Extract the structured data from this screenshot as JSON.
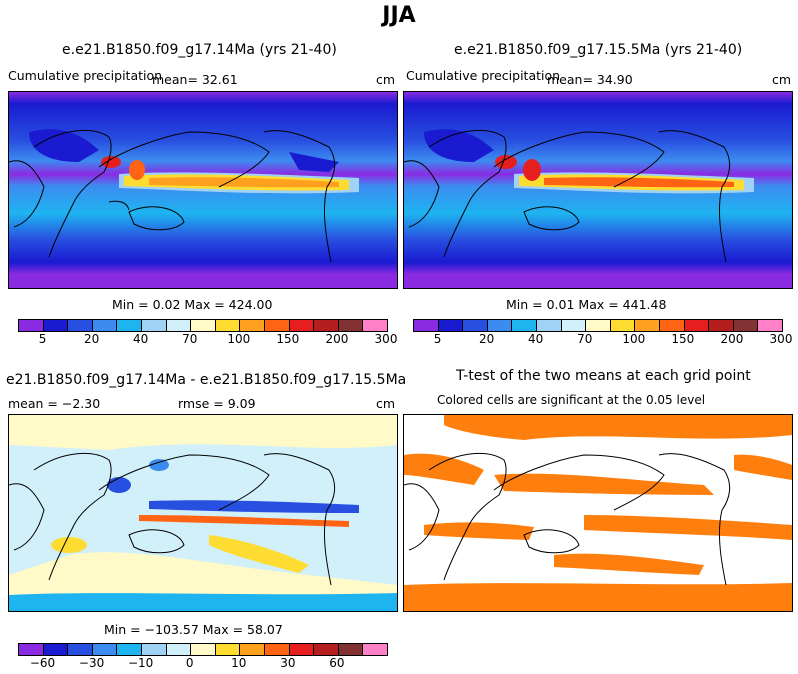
{
  "page": {
    "title": "JJA"
  },
  "panels": {
    "p1": {
      "title": "e.e21.B1850.f09_g17.14Ma (yrs 21-40)",
      "field": "Cumulative precipitation",
      "mean": "mean=  32.61",
      "units": "cm",
      "minmax": "Min =   0.02  Max = 424.00"
    },
    "p2": {
      "title": "e.e21.B1850.f09_g17.15.5Ma (yrs 21-40)",
      "field": "Cumulative precipitation",
      "mean": "mean=  34.90",
      "units": "cm",
      "minmax": "Min =   0.01  Max = 441.48"
    },
    "p3": {
      "title": "e21.B1850.f09_g17.14Ma - e.e21.B1850.f09_g17.15.5Ma",
      "mean": "mean =  −2.30",
      "rmse": "rmse =   9.09",
      "units": "cm",
      "minmax": "Min = −103.57  Max =  58.07"
    },
    "p4": {
      "title": "T-test of the two means at each grid point",
      "subtitle": "Colored cells are significant at the 0.05 level"
    }
  },
  "colorbars": {
    "precip": {
      "colors": [
        "#8a2be2",
        "#1a1ad0",
        "#2850e0",
        "#3c8cf0",
        "#1eb4f0",
        "#a0d2f5",
        "#d2f0fa",
        "#fffac8",
        "#ffdc32",
        "#ffa01e",
        "#ff6414",
        "#e61e1e",
        "#b41e1e",
        "#823232",
        "#ff82c8"
      ],
      "ticks": [
        "5",
        "20",
        "40",
        "70",
        "100",
        "150",
        "200",
        "300"
      ]
    },
    "diff": {
      "colors": [
        "#8a2be2",
        "#1a1ad0",
        "#2850e0",
        "#3c8cf0",
        "#1eb4f0",
        "#a0d2f5",
        "#d2f0fa",
        "#fffac8",
        "#ffdc32",
        "#ffa01e",
        "#ff6414",
        "#e61e1e",
        "#b41e1e",
        "#823232",
        "#ff82c8"
      ],
      "ticks": [
        "−60",
        "−30",
        "−10",
        "0",
        "10",
        "30",
        "60"
      ]
    },
    "significance_color": "#ff7f0e"
  },
  "chart_data": [
    {
      "type": "heatmap",
      "title": "e.e21.B1850.f09_g17.14Ma (yrs 21-40)",
      "variable": "Cumulative precipitation",
      "units": "cm",
      "mean": 32.61,
      "min": 0.02,
      "max": 424.0,
      "colorbar_levels": [
        5,
        20,
        40,
        70,
        100,
        150,
        200,
        300
      ]
    },
    {
      "type": "heatmap",
      "title": "e.e21.B1850.f09_g17.15.5Ma (yrs 21-40)",
      "variable": "Cumulative precipitation",
      "units": "cm",
      "mean": 34.9,
      "min": 0.01,
      "max": 441.48,
      "colorbar_levels": [
        5,
        20,
        40,
        70,
        100,
        150,
        200,
        300
      ]
    },
    {
      "type": "heatmap",
      "title": "e21.B1850.f09_g17.14Ma - e.e21.B1850.f09_g17.15.5Ma",
      "units": "cm",
      "mean": -2.3,
      "rmse": 9.09,
      "min": -103.57,
      "max": 58.07,
      "colorbar_levels": [
        -60,
        -30,
        -10,
        0,
        10,
        30,
        60
      ]
    },
    {
      "type": "heatmap",
      "title": "T-test of the two means at each grid point",
      "subtitle": "Colored cells are significant at the 0.05 level"
    }
  ]
}
